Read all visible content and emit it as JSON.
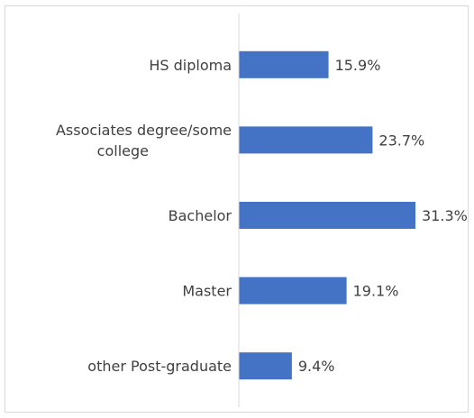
{
  "chart_data": {
    "type": "bar",
    "orientation": "horizontal",
    "categories": [
      "HS diploma",
      "Associates degree/some college",
      "Bachelor",
      "Master",
      "other Post-graduate"
    ],
    "category_lines": [
      [
        "HS diploma"
      ],
      [
        "Associates degree/some",
        "college"
      ],
      [
        "Bachelor"
      ],
      [
        "Master"
      ],
      [
        "other Post-graduate"
      ]
    ],
    "values": [
      15.9,
      23.7,
      31.3,
      19.1,
      9.4
    ],
    "data_labels": [
      "15.9%",
      "23.7%",
      "31.3%",
      "19.1%",
      "9.4%"
    ],
    "value_unit": "%",
    "title": "",
    "xlabel": "",
    "ylabel": "",
    "xlim": [
      0,
      31.3
    ],
    "bar_color": "#4472c4",
    "axis_color": "#d9d9d9",
    "text_color": "#404040",
    "grid": false,
    "legend": "none"
  }
}
